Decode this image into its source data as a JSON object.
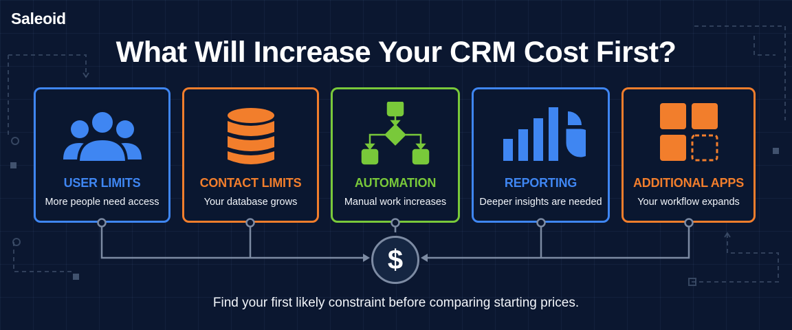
{
  "brand": {
    "name": "Saleoid"
  },
  "title": "What Will Increase Your CRM Cost First?",
  "cards": [
    {
      "label": "USER LIMITS",
      "description": "More people need access",
      "color": "#3f86f2",
      "icon": "users-icon"
    },
    {
      "label": "CONTACT LIMITS",
      "description": "Your database grows",
      "color": "#f27e2c",
      "icon": "database-icon"
    },
    {
      "label": "AUTOMATION",
      "description": "Manual work increases",
      "color": "#79c93a",
      "icon": "workflow-icon"
    },
    {
      "label": "REPORTING",
      "description": "Deeper insights are needed",
      "color": "#3f86f2",
      "icon": "chart-icon"
    },
    {
      "label": "ADDITIONAL APPS",
      "description": "Your workflow expands",
      "color": "#f27e2c",
      "icon": "apps-grid-icon"
    }
  ],
  "center": {
    "symbol": "$",
    "icon": "dollar-icon"
  },
  "footer": "Find your first likely constraint before comparing starting prices."
}
